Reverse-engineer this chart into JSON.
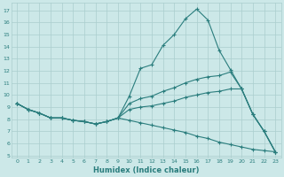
{
  "x": [
    0,
    1,
    2,
    3,
    4,
    5,
    6,
    7,
    8,
    9,
    10,
    11,
    12,
    13,
    14,
    15,
    16,
    17,
    18,
    19,
    20,
    21,
    22,
    23
  ],
  "line1": [
    9.3,
    8.8,
    8.5,
    8.1,
    8.1,
    7.9,
    7.8,
    7.6,
    7.8,
    8.1,
    9.9,
    12.2,
    12.5,
    14.1,
    15.0,
    16.3,
    17.1,
    16.2,
    13.7,
    12.1,
    10.5,
    8.4,
    7.0,
    5.3
  ],
  "line2": [
    9.3,
    8.8,
    8.5,
    8.1,
    8.1,
    7.9,
    7.8,
    7.6,
    7.8,
    8.1,
    9.3,
    9.7,
    9.9,
    10.3,
    10.6,
    11.0,
    11.3,
    11.5,
    11.6,
    11.9,
    10.5,
    8.4,
    7.0,
    5.3
  ],
  "line3": [
    9.3,
    8.8,
    8.5,
    8.1,
    8.1,
    7.9,
    7.8,
    7.6,
    7.8,
    8.1,
    8.8,
    9.0,
    9.1,
    9.3,
    9.5,
    9.8,
    10.0,
    10.2,
    10.3,
    10.5,
    10.5,
    8.4,
    7.0,
    5.3
  ],
  "line4": [
    9.3,
    8.8,
    8.5,
    8.1,
    8.1,
    7.9,
    7.8,
    7.6,
    7.8,
    8.1,
    7.9,
    7.7,
    7.5,
    7.3,
    7.1,
    6.9,
    6.6,
    6.4,
    6.1,
    5.9,
    5.7,
    5.5,
    5.4,
    5.3
  ],
  "line_color": "#2a7d7d",
  "bg_color": "#cce8e8",
  "grid_color": "#aacece",
  "xlabel": "Humidex (Indice chaleur)",
  "ylim": [
    4.8,
    17.6
  ],
  "xlim": [
    -0.5,
    23.5
  ],
  "yticks": [
    5,
    6,
    7,
    8,
    9,
    10,
    11,
    12,
    13,
    14,
    15,
    16,
    17
  ],
  "xticks": [
    0,
    1,
    2,
    3,
    4,
    5,
    6,
    7,
    8,
    9,
    10,
    11,
    12,
    13,
    14,
    15,
    16,
    17,
    18,
    19,
    20,
    21,
    22,
    23
  ]
}
